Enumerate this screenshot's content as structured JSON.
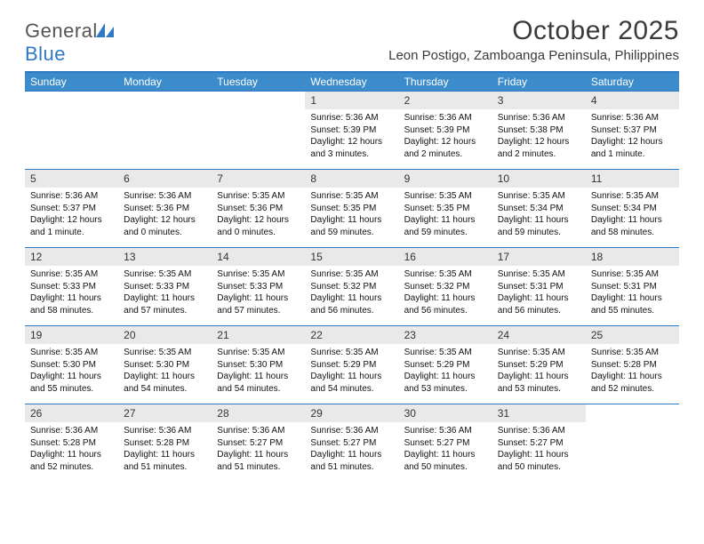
{
  "logo": {
    "word1": "General",
    "word2": "Blue"
  },
  "title": "October 2025",
  "location": "Leon Postigo, Zamboanga Peninsula, Philippines",
  "colors": {
    "header_bg": "#3c8ccc",
    "header_text": "#ffffff",
    "accent": "#2f78c4",
    "daynum_bg": "#e9e9e9",
    "page_bg": "#ffffff",
    "text": "#111111"
  },
  "fonts": {
    "body_pt": 10,
    "title_pt": 30,
    "location_pt": 15,
    "header_pt": 12,
    "daynum_pt": 12
  },
  "day_headers": [
    "Sunday",
    "Monday",
    "Tuesday",
    "Wednesday",
    "Thursday",
    "Friday",
    "Saturday"
  ],
  "weeks": [
    [
      {
        "n": "",
        "empty": true
      },
      {
        "n": "",
        "empty": true
      },
      {
        "n": "",
        "empty": true
      },
      {
        "n": "1",
        "sr": "Sunrise: 5:36 AM",
        "ss": "Sunset: 5:39 PM",
        "dl": "Daylight: 12 hours and 3 minutes."
      },
      {
        "n": "2",
        "sr": "Sunrise: 5:36 AM",
        "ss": "Sunset: 5:39 PM",
        "dl": "Daylight: 12 hours and 2 minutes."
      },
      {
        "n": "3",
        "sr": "Sunrise: 5:36 AM",
        "ss": "Sunset: 5:38 PM",
        "dl": "Daylight: 12 hours and 2 minutes."
      },
      {
        "n": "4",
        "sr": "Sunrise: 5:36 AM",
        "ss": "Sunset: 5:37 PM",
        "dl": "Daylight: 12 hours and 1 minute."
      }
    ],
    [
      {
        "n": "5",
        "sr": "Sunrise: 5:36 AM",
        "ss": "Sunset: 5:37 PM",
        "dl": "Daylight: 12 hours and 1 minute."
      },
      {
        "n": "6",
        "sr": "Sunrise: 5:36 AM",
        "ss": "Sunset: 5:36 PM",
        "dl": "Daylight: 12 hours and 0 minutes."
      },
      {
        "n": "7",
        "sr": "Sunrise: 5:35 AM",
        "ss": "Sunset: 5:36 PM",
        "dl": "Daylight: 12 hours and 0 minutes."
      },
      {
        "n": "8",
        "sr": "Sunrise: 5:35 AM",
        "ss": "Sunset: 5:35 PM",
        "dl": "Daylight: 11 hours and 59 minutes."
      },
      {
        "n": "9",
        "sr": "Sunrise: 5:35 AM",
        "ss": "Sunset: 5:35 PM",
        "dl": "Daylight: 11 hours and 59 minutes."
      },
      {
        "n": "10",
        "sr": "Sunrise: 5:35 AM",
        "ss": "Sunset: 5:34 PM",
        "dl": "Daylight: 11 hours and 59 minutes."
      },
      {
        "n": "11",
        "sr": "Sunrise: 5:35 AM",
        "ss": "Sunset: 5:34 PM",
        "dl": "Daylight: 11 hours and 58 minutes."
      }
    ],
    [
      {
        "n": "12",
        "sr": "Sunrise: 5:35 AM",
        "ss": "Sunset: 5:33 PM",
        "dl": "Daylight: 11 hours and 58 minutes."
      },
      {
        "n": "13",
        "sr": "Sunrise: 5:35 AM",
        "ss": "Sunset: 5:33 PM",
        "dl": "Daylight: 11 hours and 57 minutes."
      },
      {
        "n": "14",
        "sr": "Sunrise: 5:35 AM",
        "ss": "Sunset: 5:33 PM",
        "dl": "Daylight: 11 hours and 57 minutes."
      },
      {
        "n": "15",
        "sr": "Sunrise: 5:35 AM",
        "ss": "Sunset: 5:32 PM",
        "dl": "Daylight: 11 hours and 56 minutes."
      },
      {
        "n": "16",
        "sr": "Sunrise: 5:35 AM",
        "ss": "Sunset: 5:32 PM",
        "dl": "Daylight: 11 hours and 56 minutes."
      },
      {
        "n": "17",
        "sr": "Sunrise: 5:35 AM",
        "ss": "Sunset: 5:31 PM",
        "dl": "Daylight: 11 hours and 56 minutes."
      },
      {
        "n": "18",
        "sr": "Sunrise: 5:35 AM",
        "ss": "Sunset: 5:31 PM",
        "dl": "Daylight: 11 hours and 55 minutes."
      }
    ],
    [
      {
        "n": "19",
        "sr": "Sunrise: 5:35 AM",
        "ss": "Sunset: 5:30 PM",
        "dl": "Daylight: 11 hours and 55 minutes."
      },
      {
        "n": "20",
        "sr": "Sunrise: 5:35 AM",
        "ss": "Sunset: 5:30 PM",
        "dl": "Daylight: 11 hours and 54 minutes."
      },
      {
        "n": "21",
        "sr": "Sunrise: 5:35 AM",
        "ss": "Sunset: 5:30 PM",
        "dl": "Daylight: 11 hours and 54 minutes."
      },
      {
        "n": "22",
        "sr": "Sunrise: 5:35 AM",
        "ss": "Sunset: 5:29 PM",
        "dl": "Daylight: 11 hours and 54 minutes."
      },
      {
        "n": "23",
        "sr": "Sunrise: 5:35 AM",
        "ss": "Sunset: 5:29 PM",
        "dl": "Daylight: 11 hours and 53 minutes."
      },
      {
        "n": "24",
        "sr": "Sunrise: 5:35 AM",
        "ss": "Sunset: 5:29 PM",
        "dl": "Daylight: 11 hours and 53 minutes."
      },
      {
        "n": "25",
        "sr": "Sunrise: 5:35 AM",
        "ss": "Sunset: 5:28 PM",
        "dl": "Daylight: 11 hours and 52 minutes."
      }
    ],
    [
      {
        "n": "26",
        "sr": "Sunrise: 5:36 AM",
        "ss": "Sunset: 5:28 PM",
        "dl": "Daylight: 11 hours and 52 minutes."
      },
      {
        "n": "27",
        "sr": "Sunrise: 5:36 AM",
        "ss": "Sunset: 5:28 PM",
        "dl": "Daylight: 11 hours and 51 minutes."
      },
      {
        "n": "28",
        "sr": "Sunrise: 5:36 AM",
        "ss": "Sunset: 5:27 PM",
        "dl": "Daylight: 11 hours and 51 minutes."
      },
      {
        "n": "29",
        "sr": "Sunrise: 5:36 AM",
        "ss": "Sunset: 5:27 PM",
        "dl": "Daylight: 11 hours and 51 minutes."
      },
      {
        "n": "30",
        "sr": "Sunrise: 5:36 AM",
        "ss": "Sunset: 5:27 PM",
        "dl": "Daylight: 11 hours and 50 minutes."
      },
      {
        "n": "31",
        "sr": "Sunrise: 5:36 AM",
        "ss": "Sunset: 5:27 PM",
        "dl": "Daylight: 11 hours and 50 minutes."
      },
      {
        "n": "",
        "empty": true
      }
    ]
  ]
}
